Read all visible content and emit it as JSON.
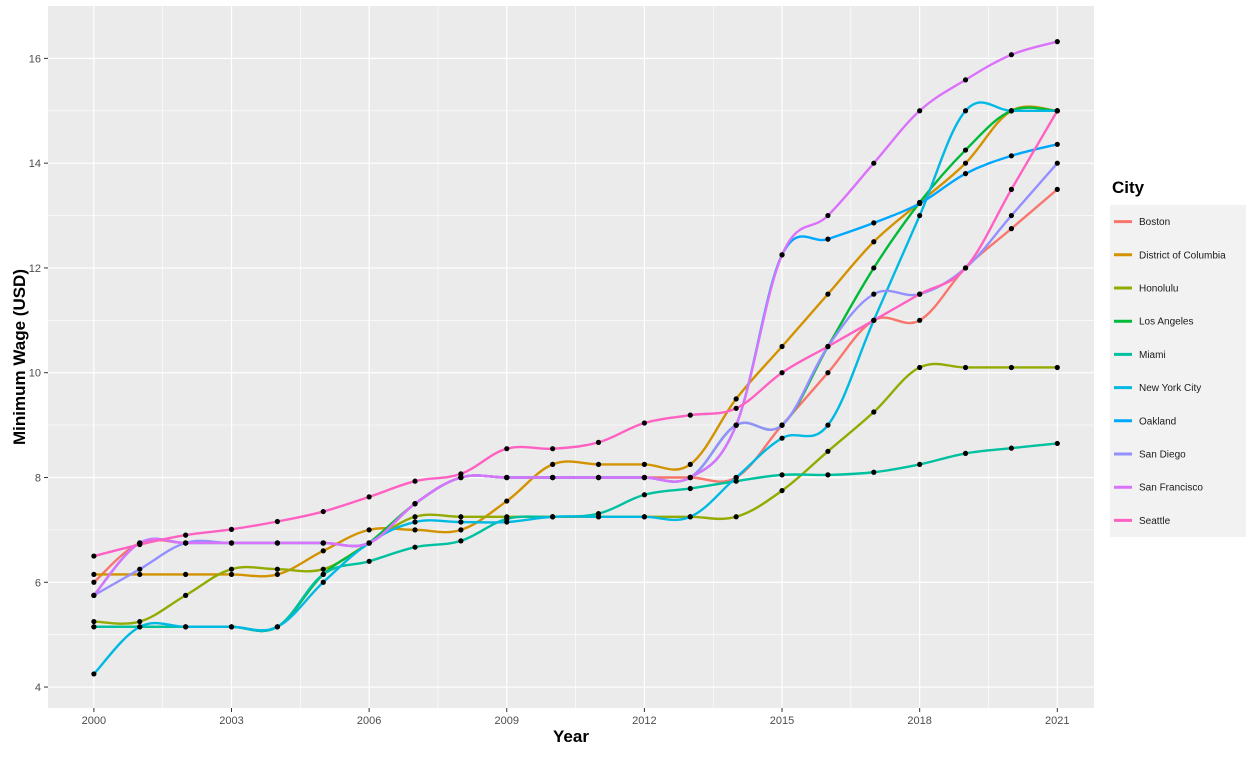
{
  "chart_data": {
    "type": "line",
    "xlabel": "Year",
    "ylabel": "Minimum Wage (USD)",
    "xlim": [
      1999.0,
      2021.8
    ],
    "ylim": [
      3.6,
      17.0
    ],
    "x_ticks": [
      2000,
      2003,
      2006,
      2009,
      2012,
      2015,
      2018,
      2021
    ],
    "y_ticks": [
      4,
      6,
      8,
      10,
      12,
      14,
      16
    ],
    "x_tick_labels": [
      "2000",
      "2003",
      "2006",
      "2009",
      "2012",
      "2015",
      "2018",
      "2021"
    ],
    "y_tick_labels": [
      "4",
      "6",
      "8",
      "10",
      "12",
      "14",
      "16"
    ],
    "grid": true,
    "background": "#ebebeb",
    "legend_title": "City",
    "legend_position": "right",
    "x": [
      2000,
      2001,
      2002,
      2003,
      2004,
      2005,
      2006,
      2007,
      2008,
      2009,
      2010,
      2011,
      2012,
      2013,
      2014,
      2015,
      2016,
      2017,
      2018,
      2019,
      2020,
      2021
    ],
    "series": [
      {
        "name": "Boston",
        "color": "#F8766D",
        "values": [
          6.0,
          6.75,
          6.75,
          6.75,
          6.75,
          6.75,
          6.75,
          7.5,
          8.0,
          8.0,
          8.0,
          8.0,
          8.0,
          8.0,
          8.0,
          9.0,
          10.0,
          11.0,
          11.0,
          12.0,
          12.75,
          13.5
        ]
      },
      {
        "name": "District of Columbia",
        "color": "#D39200",
        "values": [
          6.15,
          6.15,
          6.15,
          6.15,
          6.15,
          6.6,
          7.0,
          7.0,
          7.0,
          7.55,
          8.25,
          8.25,
          8.25,
          8.25,
          9.5,
          10.5,
          11.5,
          12.5,
          13.25,
          14.0,
          15.0,
          15.0
        ]
      },
      {
        "name": "Honolulu",
        "color": "#93AA00",
        "values": [
          5.25,
          5.25,
          5.75,
          6.25,
          6.25,
          6.25,
          6.75,
          7.25,
          7.25,
          7.25,
          7.25,
          7.25,
          7.25,
          7.25,
          7.25,
          7.75,
          8.5,
          9.25,
          10.1,
          10.1,
          10.1,
          10.1
        ]
      },
      {
        "name": "Los Angeles",
        "color": "#00BA38",
        "values": [
          5.15,
          5.15,
          5.15,
          5.15,
          5.15,
          6.15,
          6.75,
          7.5,
          8.0,
          8.0,
          8.0,
          8.0,
          8.0,
          8.0,
          9.0,
          9.0,
          10.5,
          12.0,
          13.25,
          14.25,
          15.0,
          15.0
        ]
      },
      {
        "name": "Miami",
        "color": "#00C19F",
        "values": [
          5.15,
          5.15,
          5.15,
          5.15,
          5.15,
          6.15,
          6.4,
          6.67,
          6.79,
          7.21,
          7.25,
          7.31,
          7.67,
          7.79,
          7.93,
          8.05,
          8.05,
          8.1,
          8.25,
          8.46,
          8.56,
          8.65
        ]
      },
      {
        "name": "New York City",
        "color": "#00B9E3",
        "values": [
          4.25,
          5.15,
          5.15,
          5.15,
          5.15,
          6.0,
          6.75,
          7.15,
          7.15,
          7.15,
          7.25,
          7.25,
          7.25,
          7.25,
          8.0,
          8.75,
          9.0,
          11.0,
          13.0,
          15.0,
          15.0,
          15.0
        ]
      },
      {
        "name": "Oakland",
        "color": "#00A7FF",
        "values": [
          5.75,
          6.75,
          6.75,
          6.75,
          6.75,
          6.75,
          6.75,
          7.5,
          8.0,
          8.0,
          8.0,
          8.0,
          8.0,
          8.0,
          9.0,
          12.25,
          12.55,
          12.86,
          13.23,
          13.8,
          14.14,
          14.36
        ]
      },
      {
        "name": "San Diego",
        "color": "#9590FF",
        "values": [
          5.75,
          6.25,
          6.75,
          6.75,
          6.75,
          6.75,
          6.75,
          7.5,
          8.0,
          8.0,
          8.0,
          8.0,
          8.0,
          8.0,
          9.0,
          9.0,
          10.5,
          11.5,
          11.5,
          12.0,
          13.0,
          14.0
        ]
      },
      {
        "name": "San Francisco",
        "color": "#DB72FB",
        "values": [
          5.75,
          6.75,
          6.75,
          6.75,
          6.75,
          6.75,
          6.75,
          7.5,
          8.0,
          8.0,
          8.0,
          8.0,
          8.0,
          8.0,
          9.0,
          12.25,
          13.0,
          14.0,
          15.0,
          15.59,
          16.07,
          16.32
        ]
      },
      {
        "name": "Seattle",
        "color": "#FF61C3",
        "values": [
          6.5,
          6.72,
          6.9,
          7.01,
          7.16,
          7.35,
          7.63,
          7.93,
          8.07,
          8.55,
          8.55,
          8.67,
          9.04,
          9.19,
          9.32,
          10.0,
          10.5,
          11.0,
          11.5,
          12.0,
          13.5,
          15.0
        ]
      }
    ]
  }
}
